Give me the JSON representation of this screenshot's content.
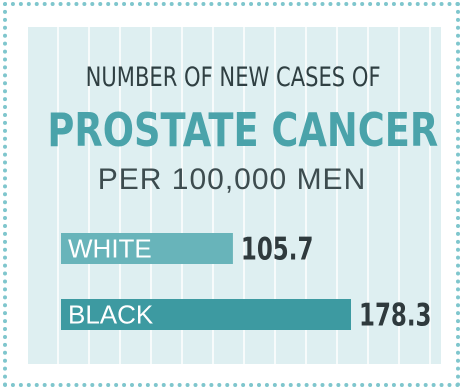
{
  "title": {
    "line1": "NUMBER OF NEW CASES OF",
    "line2": "PROSTATE CANCER",
    "line3": "PER 100,000 MEN"
  },
  "colors": {
    "background": "#ffffff",
    "border_dots": "#7fc6cd",
    "panel": "#deeff1",
    "heading_accent": "#4aa3aa",
    "bar_white": "#68b4ba",
    "bar_black": "#3d9aa1",
    "value_text": "#2f3a3d"
  },
  "chart_data": {
    "type": "bar",
    "orientation": "horizontal",
    "title": "NUMBER OF NEW CASES OF PROSTATE CANCER PER 100,000 MEN",
    "categories": [
      "WHITE",
      "BLACK"
    ],
    "values": [
      105.7,
      178.3
    ],
    "value_labels": [
      "105.7",
      "178.3"
    ],
    "xlim": [
      0,
      178.3
    ],
    "grid": false,
    "legend": "none"
  }
}
